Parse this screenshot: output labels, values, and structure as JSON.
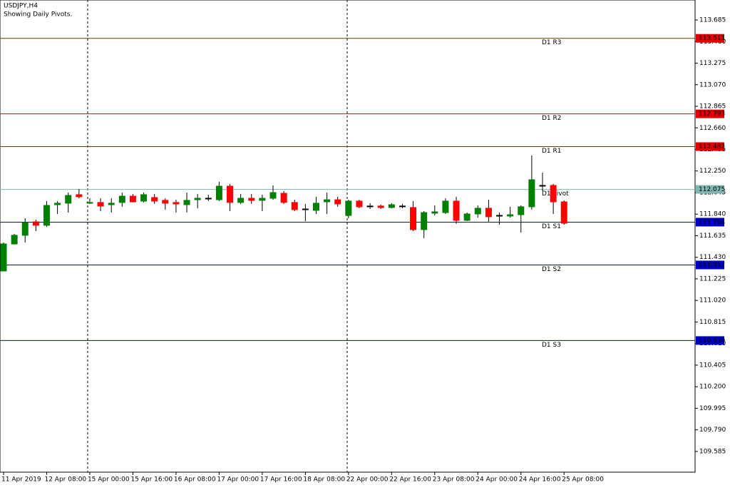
{
  "chart_data": {
    "type": "candlestick",
    "title": "USDJPY,H4",
    "subtitle": "Showing Daily Pivots.",
    "categories": [
      "11 Apr 2019",
      null,
      null,
      null,
      "12 Apr 08:00",
      null,
      null,
      null,
      "15 Apr 00:00",
      null,
      null,
      null,
      "15 Apr 16:00",
      null,
      null,
      null,
      "16 Apr 08:00",
      null,
      null,
      null,
      "17 Apr 00:00",
      null,
      null,
      null,
      "17 Apr 16:00",
      null,
      null,
      null,
      "18 Apr 08:00",
      null,
      null,
      null,
      "22 Apr 00:00",
      null,
      null,
      null,
      "22 Apr 16:00",
      null,
      null,
      null,
      "23 Apr 08:00",
      null,
      null,
      null,
      "24 Apr 00:00",
      null,
      null,
      null,
      "24 Apr 16:00",
      null,
      null,
      null,
      "25 Apr 08:00"
    ],
    "open": [
      111.3,
      111.557,
      111.639,
      111.767,
      111.734,
      111.93,
      111.944,
      112.025,
      111.944,
      111.951,
      111.93,
      111.951,
      112.011,
      111.964,
      111.998,
      111.971,
      111.951,
      111.93,
      111.977,
      111.991,
      111.977,
      112.106,
      111.951,
      111.991,
      111.971,
      111.991,
      112.038,
      111.951,
      111.889,
      111.876,
      111.957,
      111.977,
      111.828,
      111.964,
      111.917,
      111.917,
      111.903,
      111.917,
      111.903,
      111.693,
      111.849,
      111.855,
      111.964,
      111.781,
      111.842,
      111.896,
      111.828,
      111.822,
      111.835,
      111.91,
      112.113,
      112.113,
      111.957
    ],
    "high": [
      111.571,
      111.652,
      111.801,
      111.788,
      111.964,
      111.964,
      112.045,
      112.079,
      111.991,
      111.991,
      111.991,
      112.045,
      112.032,
      112.045,
      112.032,
      111.991,
      111.977,
      112.045,
      112.032,
      112.025,
      112.147,
      112.127,
      112.032,
      112.032,
      112.025,
      112.113,
      112.059,
      111.977,
      111.937,
      112.005,
      112.045,
      112.005,
      111.977,
      111.977,
      111.944,
      111.93,
      111.944,
      111.937,
      111.964,
      111.869,
      111.923,
      111.991,
      112.005,
      111.855,
      111.923,
      111.977,
      111.855,
      111.91,
      111.923,
      112.398,
      112.235,
      112.127,
      111.971
    ],
    "low": [
      111.3,
      111.551,
      111.571,
      111.679,
      111.72,
      111.842,
      111.855,
      111.991,
      111.937,
      111.869,
      111.855,
      111.91,
      111.951,
      111.951,
      111.937,
      111.883,
      111.855,
      111.855,
      111.896,
      111.964,
      111.964,
      111.869,
      111.937,
      111.937,
      111.869,
      111.977,
      111.937,
      111.869,
      111.774,
      111.842,
      111.842,
      111.91,
      111.801,
      111.896,
      111.889,
      111.889,
      111.896,
      111.896,
      111.679,
      111.612,
      111.828,
      111.842,
      111.747,
      111.774,
      111.808,
      111.761,
      111.74,
      111.808,
      111.666,
      111.883,
      112.059,
      111.842,
      111.74
    ],
    "close": [
      111.557,
      111.639,
      111.761,
      111.734,
      111.923,
      111.944,
      112.018,
      112.005,
      111.951,
      111.917,
      111.944,
      112.011,
      111.957,
      112.025,
      111.964,
      111.944,
      111.937,
      111.971,
      111.991,
      111.991,
      112.106,
      111.951,
      111.991,
      111.971,
      111.991,
      112.045,
      111.951,
      111.883,
      111.889,
      111.944,
      111.977,
      111.937,
      111.964,
      111.91,
      111.917,
      111.903,
      111.93,
      111.917,
      111.693,
      111.855,
      111.862,
      111.964,
      111.781,
      111.842,
      111.896,
      111.815,
      111.828,
      111.835,
      111.91,
      112.167,
      112.113,
      111.957,
      111.754
    ],
    "up_color": "#008000",
    "down_color": "#ff0000",
    "levels": [
      {
        "name": "D1 R3",
        "value": 113.511,
        "color": "#e00000"
      },
      {
        "name": "D1 R2",
        "value": 112.793,
        "color": "#e00000"
      },
      {
        "name": "D1 R1",
        "value": 112.482,
        "color": "#e00000"
      },
      {
        "name": "D1 Pivot",
        "value": 112.075,
        "color": "#7fb8b0"
      },
      {
        "name": "D1 S1",
        "value": 111.764,
        "color": "#0000c0"
      },
      {
        "name": "D1 S2",
        "value": 111.357,
        "color": "#0000c0"
      },
      {
        "name": "D1 S3",
        "value": 110.639,
        "color": "#0000c0"
      }
    ],
    "ylim": [
      109.388,
      113.875
    ],
    "yticks": [
      113.685,
      {
        "value": 113.48,
        "label": "113.480"
      },
      113.275,
      {
        "value": 113.07,
        "label": "113.070"
      },
      112.865,
      {
        "value": 112.66,
        "label": "112.660"
      },
      112.455,
      {
        "value": 112.25,
        "label": "112.250"
      },
      112.045,
      {
        "value": 111.84,
        "label": "111.840"
      },
      111.635,
      {
        "value": 111.43,
        "label": "111.430"
      },
      111.225,
      {
        "value": 111.02,
        "label": "111.020"
      },
      110.815,
      {
        "value": 110.61,
        "label": "110.610"
      },
      110.405,
      {
        "value": 110.2,
        "label": "110.200"
      },
      109.995,
      {
        "value": 109.79,
        "label": "109.790"
      },
      109.585
    ]
  }
}
